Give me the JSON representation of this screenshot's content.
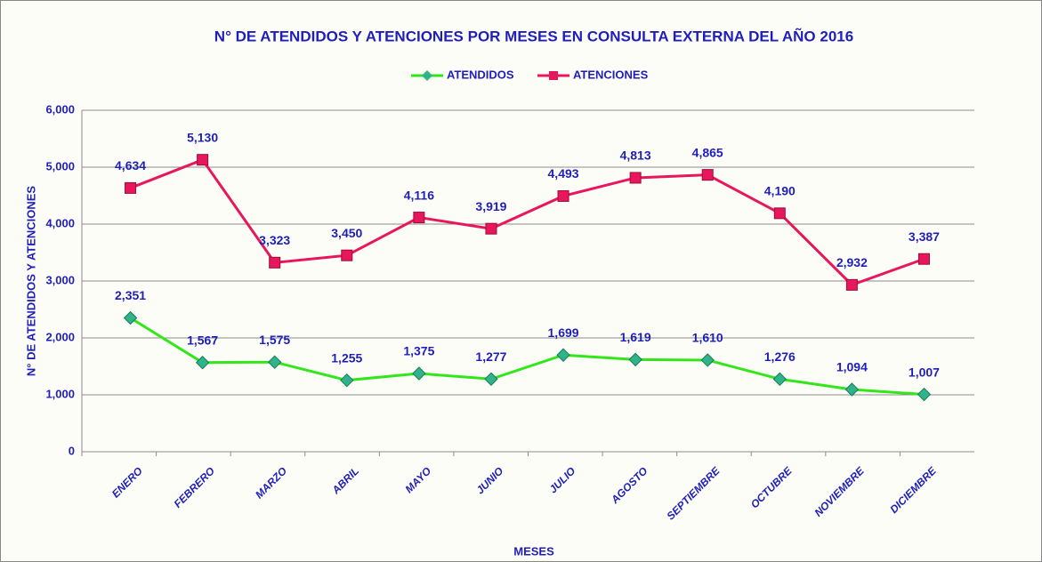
{
  "chart_data": {
    "type": "line",
    "title": "N° DE ATENDIDOS Y ATENCIONES POR MESES EN CONSULTA EXTERNA DEL AÑO 2016",
    "x_label": "MESES",
    "y_label": "N° DE ATENDIDOS Y ATENCIONES",
    "categories": [
      "ENERO",
      "FEBRERO",
      "MARZO",
      "ABRIL",
      "MAYO",
      "JUNIO",
      "JULIO",
      "AGOSTO",
      "SEPTIEMBRE",
      "OCTUBRE",
      "NOVIEMBRE",
      "DICIEMBRE"
    ],
    "series": [
      {
        "name": "ATENDIDOS",
        "color": "#33e61a",
        "marker_color": "#2fb38a",
        "marker": "diamond",
        "values": [
          2351,
          1567,
          1575,
          1255,
          1375,
          1277,
          1699,
          1619,
          1610,
          1276,
          1094,
          1007
        ],
        "value_labels": [
          "2,351",
          "1,567",
          "1,575",
          "1,255",
          "1,375",
          "1,277",
          "1,699",
          "1,619",
          "1,610",
          "1,276",
          "1,094",
          "1,007"
        ]
      },
      {
        "name": "ATENCIONES",
        "color": "#e8175d",
        "marker_color": "#e8175d",
        "marker": "square",
        "values": [
          4634,
          5130,
          3323,
          3450,
          4116,
          3919,
          4493,
          4813,
          4865,
          4190,
          2932,
          3387
        ],
        "value_labels": [
          "4,634",
          "5,130",
          "3,323",
          "3,450",
          "4,116",
          "3,919",
          "4,493",
          "4,813",
          "4,865",
          "4,190",
          "2,932",
          "3,387"
        ]
      }
    ],
    "ylim": [
      0,
      6000
    ],
    "yticks": [
      0,
      {
        "value": 1000,
        "label": "1,000"
      },
      {
        "value": 2000,
        "label": "2,000"
      },
      {
        "value": 3000,
        "label": "3,000"
      },
      {
        "value": 4000,
        "label": "4,000"
      },
      {
        "value": 5000,
        "label": "5,000"
      },
      {
        "value": 6000,
        "label": "6,000"
      }
    ],
    "grid": true,
    "legend": "top"
  }
}
